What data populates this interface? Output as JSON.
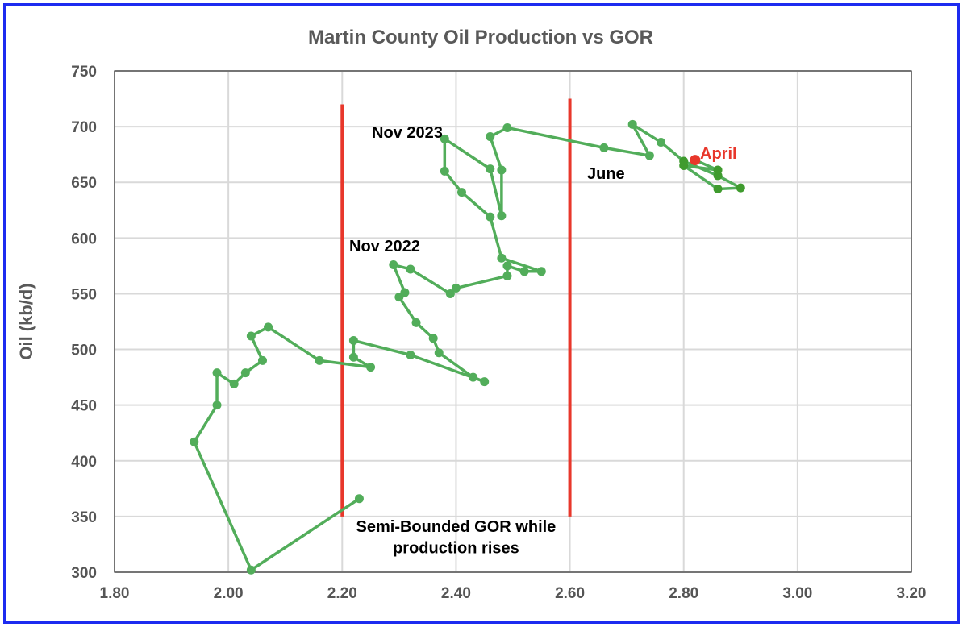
{
  "chart_data": {
    "type": "line",
    "title": "Martin County Oil Production vs GOR",
    "xlabel": "",
    "ylabel": "Oil (kb/d)",
    "xlim": [
      1.8,
      3.2
    ],
    "ylim": [
      300,
      750
    ],
    "x_ticks": [
      "1.80",
      "2.00",
      "2.20",
      "2.40",
      "2.60",
      "2.80",
      "3.00",
      "3.20"
    ],
    "y_ticks": [
      "300",
      "350",
      "400",
      "450",
      "500",
      "550",
      "600",
      "650",
      "700",
      "750"
    ],
    "grid": true,
    "series": [
      {
        "name": "Martin County",
        "color": "#52ad5a",
        "recent_color": "#3f9b2e",
        "points": [
          [
            2.23,
            366
          ],
          [
            2.04,
            302
          ],
          [
            1.94,
            417
          ],
          [
            1.98,
            450
          ],
          [
            1.98,
            479
          ],
          [
            2.01,
            469
          ],
          [
            2.03,
            479
          ],
          [
            2.06,
            490
          ],
          [
            2.04,
            512
          ],
          [
            2.07,
            520
          ],
          [
            2.16,
            490
          ],
          [
            2.25,
            484
          ],
          [
            2.22,
            493
          ],
          [
            2.22,
            508
          ],
          [
            2.32,
            495
          ],
          [
            2.45,
            471
          ],
          [
            2.43,
            475
          ],
          [
            2.37,
            497
          ],
          [
            2.36,
            510
          ],
          [
            2.33,
            524
          ],
          [
            2.3,
            547
          ],
          [
            2.31,
            551
          ],
          [
            2.29,
            576
          ],
          [
            2.32,
            572
          ],
          [
            2.39,
            550
          ],
          [
            2.4,
            555
          ],
          [
            2.49,
            566
          ],
          [
            2.49,
            575
          ],
          [
            2.52,
            570
          ],
          [
            2.55,
            570
          ],
          [
            2.48,
            582
          ],
          [
            2.46,
            619
          ],
          [
            2.41,
            641
          ],
          [
            2.38,
            660
          ],
          [
            2.38,
            689
          ],
          [
            2.46,
            662
          ],
          [
            2.48,
            620
          ],
          [
            2.48,
            661
          ],
          [
            2.46,
            691
          ],
          [
            2.49,
            699
          ],
          [
            2.66,
            681
          ],
          [
            2.74,
            674
          ],
          [
            2.71,
            702
          ],
          [
            2.76,
            686
          ],
          [
            2.8,
            669
          ],
          [
            2.86,
            656
          ],
          [
            2.9,
            645
          ],
          [
            2.86,
            644
          ],
          [
            2.8,
            665
          ],
          [
            2.86,
            661
          ],
          [
            2.82,
            670
          ]
        ]
      }
    ],
    "reference_lines": [
      {
        "x": 2.2,
        "y_from": 350,
        "y_to": 720,
        "color": "#e8372b"
      },
      {
        "x": 2.6,
        "y_from": 350,
        "y_to": 725,
        "color": "#e8372b"
      }
    ],
    "annotations": [
      {
        "text": "Nov 2023",
        "x": 2.37,
        "y": 690,
        "color": "#000000"
      },
      {
        "text": "Nov 2022",
        "x": 2.29,
        "y": 588,
        "color": "#000000"
      },
      {
        "text": "June",
        "x": 2.65,
        "y": 653,
        "color": "#000000"
      },
      {
        "text": "April",
        "x": 2.87,
        "y": 671,
        "color": "#e8372b"
      },
      {
        "text": "Semi-Bounded GOR while",
        "x": 2.4,
        "y": 336,
        "color": "#000000"
      },
      {
        "text": "production rises",
        "x": 2.4,
        "y": 317,
        "color": "#000000"
      }
    ]
  }
}
